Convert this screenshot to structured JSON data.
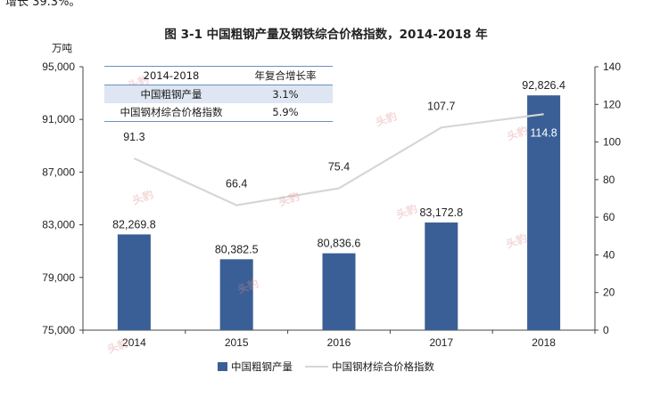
{
  "top_text": "增长 39.3%。",
  "title": "图 3-1 中国粗钢产量及钢铁综合价格指数，2014-2018 年",
  "watermark_text": "头豹",
  "chart_data": {
    "type": "bar",
    "categories": [
      "2014",
      "2015",
      "2016",
      "2017",
      "2018"
    ],
    "series": [
      {
        "name": "中国粗钢产量",
        "type": "bar",
        "axis": "left",
        "color": "#3a5f96",
        "values": [
          82269.8,
          80382.5,
          80836.6,
          83172.8,
          92826.4
        ],
        "labels": [
          "82,269.8",
          "80,382.5",
          "80,836.6",
          "83,172.8",
          "92,826.4"
        ]
      },
      {
        "name": "中国钢材综合价格指数",
        "type": "line",
        "axis": "right",
        "color": "#d6d6d6",
        "values": [
          91.3,
          66.4,
          75.4,
          107.7,
          114.8
        ],
        "labels": [
          "91.3",
          "66.4",
          "75.4",
          "107.7",
          "114.8"
        ]
      }
    ],
    "left_axis": {
      "unit": "万吨",
      "range": [
        75000,
        95000
      ],
      "ticks": [
        "95,000",
        "91,000",
        "87,000",
        "83,000",
        "79,000",
        "75,000"
      ]
    },
    "right_axis": {
      "range": [
        0,
        140
      ],
      "ticks": [
        "140",
        "120",
        "100",
        "80",
        "60",
        "40",
        "20",
        "0"
      ]
    },
    "legend_position": "bottom",
    "grid": false
  },
  "table": {
    "header": [
      "2014-2018",
      "年复合增长率"
    ],
    "rows": [
      [
        "中国粗钢产量",
        "3.1%"
      ],
      [
        "中国钢材综合价格指数",
        "5.9%"
      ]
    ]
  }
}
